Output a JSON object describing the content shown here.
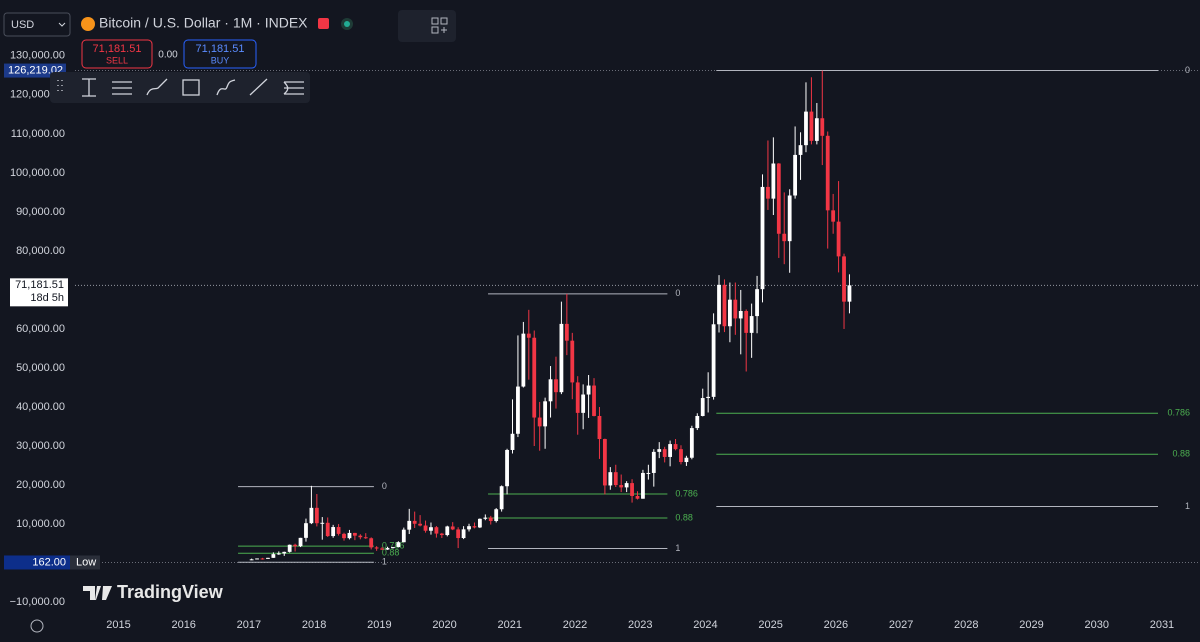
{
  "header": {
    "currency": "USD"
  },
  "trade": {
    "sell_price": "71,181.51",
    "sell_label": "SELL",
    "spread": "0.00",
    "buy_price": "71,181.51",
    "buy_label": "BUY"
  },
  "watermark": "TradingView",
  "chart_data": {
    "type": "candlestick",
    "title": "Bitcoin / U.S. Dollar · 1M · INDEX",
    "up_color": "#ffffff",
    "down_color": "#f23645",
    "grid": false,
    "ylim": [
      -13300,
      144300
    ],
    "yticks": [
      {
        "value": 130000,
        "label": "130,000.00"
      },
      {
        "value": 120000,
        "label": "120,000.00"
      },
      {
        "value": 110000,
        "label": "110,000.00"
      },
      {
        "value": 100000,
        "label": "100,000.00"
      },
      {
        "value": 90000,
        "label": "90,000.00"
      },
      {
        "value": 80000,
        "label": "80,000.00"
      },
      {
        "value": 60000,
        "label": "60,000.00"
      },
      {
        "value": 50000,
        "label": "50,000.00"
      },
      {
        "value": 40000,
        "label": "40,000.00"
      },
      {
        "value": 30000,
        "label": "30,000.00"
      },
      {
        "value": 20000,
        "label": "20,000.00"
      },
      {
        "value": 10000,
        "label": "10,000.00"
      },
      {
        "value": -10000,
        "label": "−10,000.00"
      }
    ],
    "xlim": [
      "2014-05",
      "2031-08"
    ],
    "xticks": [
      2015,
      2016,
      2017,
      2018,
      2019,
      2020,
      2021,
      2022,
      2023,
      2024,
      2025,
      2026,
      2027,
      2028,
      2029,
      2030,
      2031
    ],
    "x": [
      "2017-01",
      "2017-02",
      "2017-03",
      "2017-04",
      "2017-05",
      "2017-06",
      "2017-07",
      "2017-08",
      "2017-09",
      "2017-10",
      "2017-11",
      "2017-12",
      "2018-01",
      "2018-02",
      "2018-03",
      "2018-04",
      "2018-05",
      "2018-06",
      "2018-07",
      "2018-08",
      "2018-09",
      "2018-10",
      "2018-11",
      "2018-12",
      "2019-01",
      "2019-02",
      "2019-03",
      "2019-04",
      "2019-05",
      "2019-06",
      "2019-07",
      "2019-08",
      "2019-09",
      "2019-10",
      "2019-11",
      "2019-12",
      "2020-01",
      "2020-02",
      "2020-03",
      "2020-04",
      "2020-05",
      "2020-06",
      "2020-07",
      "2020-08",
      "2020-09",
      "2020-10",
      "2020-11",
      "2020-12",
      "2021-01",
      "2021-02",
      "2021-03",
      "2021-04",
      "2021-05",
      "2021-06",
      "2021-07",
      "2021-08",
      "2021-09",
      "2021-10",
      "2021-11",
      "2021-12",
      "2022-01",
      "2022-02",
      "2022-03",
      "2022-04",
      "2022-05",
      "2022-06",
      "2022-07",
      "2022-08",
      "2022-09",
      "2022-10",
      "2022-11",
      "2022-12",
      "2023-01",
      "2023-02",
      "2023-03",
      "2023-04",
      "2023-05",
      "2023-06",
      "2023-07",
      "2023-08",
      "2023-09",
      "2023-10",
      "2023-11",
      "2023-12",
      "2024-01",
      "2024-02",
      "2024-03",
      "2024-04",
      "2024-05",
      "2024-06",
      "2024-07",
      "2024-08",
      "2024-09",
      "2024-10",
      "2024-11",
      "2024-12",
      "2025-01",
      "2025-02",
      "2025-03",
      "2025-04",
      "2025-05",
      "2025-06",
      "2025-07",
      "2025-08",
      "2025-09",
      "2025-10",
      "2025-11",
      "2025-12",
      "2026-01",
      "2026-02",
      "2026-03"
    ],
    "open": [
      960,
      970,
      1190,
      1080,
      1350,
      2300,
      2480,
      2880,
      4700,
      4340,
      6470,
      10230,
      14160,
      10220,
      10330,
      6930,
      9240,
      7490,
      6390,
      7730,
      7030,
      6630,
      6370,
      4020,
      3740,
      3460,
      3850,
      4100,
      5350,
      8570,
      10820,
      10080,
      9630,
      8290,
      9200,
      7560,
      7190,
      9390,
      8630,
      6420,
      8650,
      9460,
      9140,
      11350,
      11660,
      10780,
      13800,
      19700,
      28990,
      33140,
      45240,
      58800,
      57750,
      37300,
      35040,
      41460,
      47100,
      43800,
      61300,
      57000,
      46300,
      38500,
      43200,
      45500,
      37700,
      31800,
      19900,
      23300,
      20000,
      19400,
      20500,
      17200,
      16500,
      23100,
      23100,
      28500,
      29200,
      27200,
      30500,
      29200,
      25900,
      27000,
      34600,
      37700,
      42300,
      42600,
      61200,
      71300,
      60700,
      67500,
      62700,
      64600,
      59000,
      63300,
      70200,
      96400,
      93400,
      102400,
      84400,
      82500,
      94200,
      104600,
      107100,
      115700,
      108200,
      114000,
      109500,
      90400,
      87500,
      78600,
      67000
    ],
    "high": [
      1150,
      1200,
      1350,
      1350,
      2760,
      3000,
      2930,
      4770,
      4980,
      6470,
      11400,
      19800,
      17700,
      11800,
      11700,
      9800,
      10000,
      7780,
      8500,
      7750,
      7400,
      7680,
      6600,
      4350,
      4100,
      4200,
      4140,
      5600,
      9100,
      13900,
      13200,
      12300,
      10900,
      10400,
      9500,
      7750,
      9580,
      10500,
      9190,
      9470,
      10080,
      10400,
      11450,
      12470,
      12100,
      14100,
      19900,
      29300,
      41950,
      58350,
      61800,
      64900,
      59600,
      41300,
      42400,
      50500,
      52900,
      67000,
      69000,
      59000,
      47900,
      45800,
      48200,
      47400,
      40000,
      31900,
      24600,
      25200,
      22700,
      21000,
      21500,
      18400,
      23900,
      25200,
      29200,
      31000,
      29800,
      31400,
      31800,
      30200,
      27500,
      35200,
      38400,
      44700,
      48900,
      64000,
      73800,
      72700,
      71900,
      71900,
      70000,
      65000,
      66500,
      73600,
      99600,
      108300,
      109100,
      102500,
      95000,
      95800,
      111900,
      110400,
      123200,
      124500,
      117900,
      126219.02,
      110600,
      94600,
      97900,
      79300,
      74000
    ],
    "low": [
      750,
      920,
      890,
      1080,
      1350,
      2100,
      1840,
      2700,
      2980,
      4110,
      5500,
      10000,
      9400,
      6000,
      6700,
      6500,
      7050,
      5750,
      6070,
      5880,
      6100,
      6200,
      3500,
      3150,
      3350,
      3390,
      3730,
      4090,
      5330,
      7450,
      9000,
      9400,
      7800,
      7300,
      6530,
      6430,
      6850,
      8450,
      3850,
      6150,
      8100,
      8900,
      8980,
      10990,
      9880,
      10400,
      13200,
      17600,
      28100,
      32300,
      45000,
      47000,
      30000,
      28800,
      29300,
      37300,
      39600,
      43300,
      53300,
      42000,
      32900,
      34300,
      37200,
      37600,
      26700,
      17600,
      18800,
      19500,
      18200,
      18200,
      15500,
      16300,
      16500,
      21400,
      19600,
      26900,
      25800,
      24800,
      28900,
      25300,
      24900,
      26600,
      34100,
      37600,
      38600,
      41900,
      59100,
      59200,
      56600,
      58500,
      53500,
      49100,
      52600,
      58900,
      66800,
      90500,
      89200,
      78200,
      76600,
      74400,
      93400,
      98200,
      105300,
      107300,
      107300,
      102000,
      80600,
      84400,
      74500,
      60000,
      64000
    ],
    "close": [
      970,
      1190,
      1080,
      1350,
      2300,
      2480,
      2880,
      4700,
      4340,
      6470,
      10230,
      14160,
      10220,
      10330,
      6930,
      9240,
      7490,
      6390,
      7730,
      7030,
      6630,
      6370,
      4020,
      3740,
      3460,
      3850,
      4100,
      5350,
      8570,
      10820,
      10080,
      9630,
      8290,
      9200,
      7560,
      7190,
      9390,
      8630,
      6420,
      8650,
      9460,
      9140,
      11350,
      11660,
      10780,
      13800,
      19700,
      28990,
      33140,
      45240,
      58800,
      57750,
      37300,
      35040,
      41460,
      47100,
      43800,
      61300,
      57000,
      46300,
      38500,
      43200,
      45500,
      37700,
      31800,
      19900,
      23300,
      20000,
      19400,
      20500,
      17200,
      16500,
      23100,
      23100,
      28500,
      29200,
      27200,
      30500,
      29200,
      25900,
      27000,
      34600,
      37700,
      42300,
      42600,
      61200,
      71300,
      60700,
      67500,
      62700,
      64600,
      59000,
      63300,
      70200,
      96400,
      93400,
      102400,
      84400,
      82500,
      94200,
      104600,
      107100,
      115700,
      108200,
      114000,
      109500,
      90400,
      87500,
      78600,
      67000,
      71181.51
    ],
    "high_marker": {
      "value": 126219.02,
      "label": "126,219.02"
    },
    "last_price": {
      "value": 71181.51,
      "label": "71,181.51",
      "countdown": "18d 5h"
    },
    "low_marker": {
      "value": 162,
      "label": "162.00",
      "tag": "Low"
    },
    "fibs": [
      {
        "start": "2016-11",
        "end": "2018-12",
        "lines": [
          {
            "level": 0,
            "price": 19600,
            "color": "#b2b5be"
          },
          {
            "level": 0.786,
            "price": 4360,
            "color": "#4caf50"
          },
          {
            "level": 0.88,
            "price": 2540,
            "color": "#4caf50"
          },
          {
            "level": 1,
            "price": 210,
            "color": "#b2b5be"
          }
        ]
      },
      {
        "start": "2020-09",
        "end": "2023-06",
        "lines": [
          {
            "level": 0,
            "price": 69000,
            "color": "#b2b5be"
          },
          {
            "level": 0.786,
            "price": 17700,
            "color": "#4caf50"
          },
          {
            "level": 0.88,
            "price": 11560,
            "color": "#4caf50"
          },
          {
            "level": 1,
            "price": 3730,
            "color": "#b2b5be"
          }
        ]
      },
      {
        "start": "2024-03",
        "extend_right": true,
        "lines": [
          {
            "level": 0,
            "price": 126219,
            "color": "#b2b5be"
          },
          {
            "level": 0.786,
            "price": 38400,
            "color": "#4caf50"
          },
          {
            "level": 0.88,
            "price": 27900,
            "color": "#4caf50"
          },
          {
            "level": 1,
            "price": 14490,
            "color": "#b2b5be"
          }
        ]
      }
    ]
  }
}
